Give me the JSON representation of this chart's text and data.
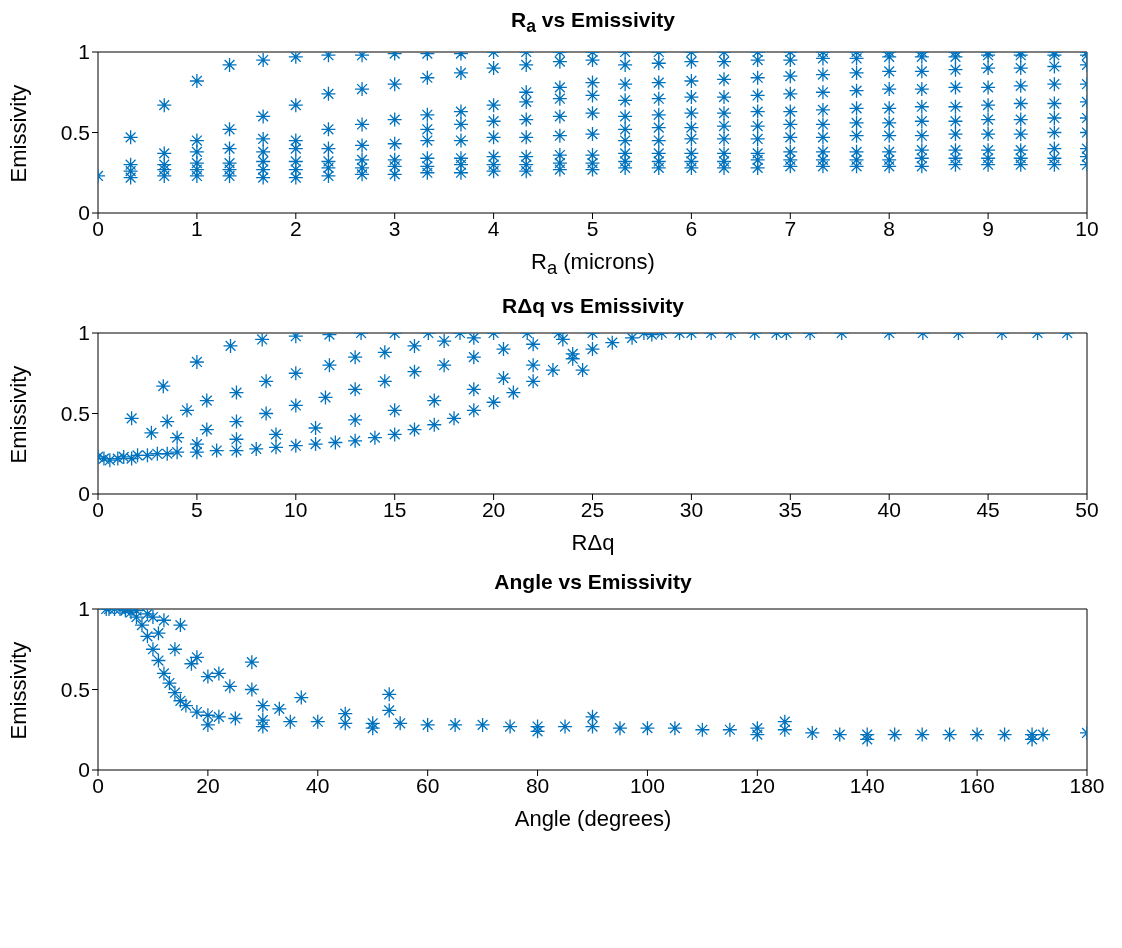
{
  "chart_data": [
    {
      "type": "scatter",
      "title": "R$_{a}$ vs Emissivity",
      "xlabel": "R$_{a}$ (microns)",
      "ylabel": "Emissivity",
      "marker": "cross",
      "xlim": [
        0,
        10
      ],
      "xticks": [
        0,
        1,
        2,
        3,
        4,
        5,
        6,
        7,
        8,
        9,
        10
      ],
      "ylim": [
        0,
        1
      ],
      "yticks": [
        0,
        0.5,
        1
      ],
      "series": [
        {
          "color": "#0072bd",
          "x": [
            0,
            0.33,
            0.33,
            0.33,
            0.33,
            0.67,
            0.67,
            0.67,
            0.67,
            0.67,
            1,
            1,
            1,
            1,
            1,
            1,
            1.33,
            1.33,
            1.33,
            1.33,
            1.33,
            1.33,
            1.67,
            1.67,
            1.67,
            1.67,
            1.67,
            1.67,
            1.67,
            2,
            2,
            2,
            2,
            2,
            2,
            2,
            2.33,
            2.33,
            2.33,
            2.33,
            2.33,
            2.33,
            2.33,
            2.67,
            2.67,
            2.67,
            2.67,
            2.67,
            2.67,
            2.67,
            3,
            3,
            3,
            3,
            3,
            3,
            3,
            3.33,
            3.33,
            3.33,
            3.33,
            3.33,
            3.33,
            3.33,
            3.33,
            3.67,
            3.67,
            3.67,
            3.67,
            3.67,
            3.67,
            3.67,
            3.67,
            4,
            4,
            4,
            4,
            4,
            4,
            4,
            4,
            4.33,
            4.33,
            4.33,
            4.33,
            4.33,
            4.33,
            4.33,
            4.33,
            4.33,
            4.67,
            4.67,
            4.67,
            4.67,
            4.67,
            4.67,
            4.67,
            4.67,
            4.67,
            5,
            5,
            5,
            5,
            5,
            5,
            5,
            5,
            5,
            5.33,
            5.33,
            5.33,
            5.33,
            5.33,
            5.33,
            5.33,
            5.33,
            5.33,
            5.33,
            5.67,
            5.67,
            5.67,
            5.67,
            5.67,
            5.67,
            5.67,
            5.67,
            5.67,
            5.67,
            6,
            6,
            6,
            6,
            6,
            6,
            6,
            6,
            6,
            6,
            6.33,
            6.33,
            6.33,
            6.33,
            6.33,
            6.33,
            6.33,
            6.33,
            6.33,
            6.33,
            6.67,
            6.67,
            6.67,
            6.67,
            6.67,
            6.67,
            6.67,
            6.67,
            6.67,
            6.67,
            7,
            7,
            7,
            7,
            7,
            7,
            7,
            7,
            7,
            7,
            7.33,
            7.33,
            7.33,
            7.33,
            7.33,
            7.33,
            7.33,
            7.33,
            7.33,
            7.33,
            7.67,
            7.67,
            7.67,
            7.67,
            7.67,
            7.67,
            7.67,
            7.67,
            7.67,
            7.67,
            8,
            8,
            8,
            8,
            8,
            8,
            8,
            8,
            8,
            8,
            8.33,
            8.33,
            8.33,
            8.33,
            8.33,
            8.33,
            8.33,
            8.33,
            8.33,
            8.33,
            8.67,
            8.67,
            8.67,
            8.67,
            8.67,
            8.67,
            8.67,
            8.67,
            8.67,
            8.67,
            9,
            9,
            9,
            9,
            9,
            9,
            9,
            9,
            9,
            9,
            9.33,
            9.33,
            9.33,
            9.33,
            9.33,
            9.33,
            9.33,
            9.33,
            9.33,
            9.33,
            9.67,
            9.67,
            9.67,
            9.67,
            9.67,
            9.67,
            9.67,
            9.67,
            9.67,
            9.67,
            10,
            10,
            10,
            10,
            10,
            10,
            10,
            10,
            10,
            10
          ],
          "values": [
            0.23,
            0.22,
            0.26,
            0.3,
            0.47,
            0.23,
            0.27,
            0.3,
            0.37,
            0.67,
            0.23,
            0.27,
            0.31,
            0.38,
            0.45,
            0.82,
            0.23,
            0.27,
            0.31,
            0.4,
            0.52,
            0.92,
            0.22,
            0.27,
            0.32,
            0.38,
            0.46,
            0.6,
            0.95,
            0.22,
            0.27,
            0.32,
            0.4,
            0.45,
            0.67,
            0.97,
            0.23,
            0.28,
            0.32,
            0.4,
            0.52,
            0.74,
            0.98,
            0.24,
            0.28,
            0.33,
            0.42,
            0.55,
            0.77,
            0.98,
            0.24,
            0.29,
            0.33,
            0.43,
            0.58,
            0.8,
            0.99,
            0.25,
            0.29,
            0.34,
            0.45,
            0.52,
            0.61,
            0.84,
            0.99,
            0.25,
            0.3,
            0.34,
            0.45,
            0.55,
            0.63,
            0.87,
            0.99,
            0.26,
            0.3,
            0.35,
            0.47,
            0.57,
            0.67,
            0.9,
            1,
            0.26,
            0.3,
            0.35,
            0.47,
            0.58,
            0.69,
            0.75,
            0.92,
            1,
            0.27,
            0.31,
            0.36,
            0.48,
            0.6,
            0.71,
            0.78,
            0.94,
            1,
            0.27,
            0.31,
            0.36,
            0.49,
            0.62,
            0.73,
            0.81,
            0.95,
            1,
            0.28,
            0.32,
            0.37,
            0.45,
            0.52,
            0.6,
            0.7,
            0.8,
            0.92,
            1,
            0.28,
            0.32,
            0.37,
            0.45,
            0.53,
            0.61,
            0.71,
            0.81,
            0.93,
            1,
            0.28,
            0.32,
            0.37,
            0.46,
            0.53,
            0.62,
            0.72,
            0.82,
            0.94,
            1,
            0.28,
            0.32,
            0.37,
            0.46,
            0.54,
            0.62,
            0.72,
            0.83,
            0.94,
            1,
            0.28,
            0.33,
            0.37,
            0.46,
            0.54,
            0.63,
            0.73,
            0.84,
            0.95,
            1,
            0.29,
            0.33,
            0.38,
            0.47,
            0.55,
            0.63,
            0.74,
            0.85,
            0.95,
            1,
            0.29,
            0.33,
            0.38,
            0.47,
            0.55,
            0.64,
            0.75,
            0.86,
            0.96,
            1,
            0.29,
            0.33,
            0.38,
            0.48,
            0.56,
            0.65,
            0.76,
            0.87,
            0.96,
            1,
            0.29,
            0.33,
            0.38,
            0.48,
            0.56,
            0.65,
            0.77,
            0.88,
            0.97,
            1,
            0.29,
            0.34,
            0.39,
            0.48,
            0.57,
            0.66,
            0.77,
            0.88,
            0.97,
            1,
            0.3,
            0.34,
            0.39,
            0.49,
            0.57,
            0.66,
            0.78,
            0.89,
            0.97,
            1,
            0.3,
            0.34,
            0.39,
            0.49,
            0.58,
            0.67,
            0.78,
            0.9,
            0.98,
            1,
            0.3,
            0.34,
            0.39,
            0.49,
            0.58,
            0.68,
            0.79,
            0.9,
            0.98,
            1,
            0.3,
            0.34,
            0.4,
            0.5,
            0.59,
            0.68,
            0.8,
            0.91,
            0.98,
            1,
            0.3,
            0.35,
            0.4,
            0.5,
            0.59,
            0.69,
            0.8,
            0.92,
            0.98,
            1
          ]
        }
      ]
    },
    {
      "type": "scatter",
      "title": "RΔq vs Emissivity",
      "xlabel": "RΔq",
      "ylabel": "Emissivity",
      "marker": "cross",
      "xlim": [
        0,
        50
      ],
      "xticks": [
        0,
        5,
        10,
        15,
        20,
        25,
        30,
        35,
        40,
        45,
        50
      ],
      "ylim": [
        0,
        1
      ],
      "yticks": [
        0,
        0.5,
        1
      ],
      "series": [
        {
          "color": "#0072bd",
          "x": [
            0,
            0.3,
            0.6,
            1,
            1.3,
            1.7,
            2,
            2.5,
            3,
            3.5,
            4,
            5,
            6,
            7,
            8,
            9,
            10,
            11,
            12,
            13,
            14,
            15,
            16,
            17,
            18,
            19,
            20,
            21,
            22,
            23,
            24,
            25,
            26,
            27,
            28,
            1.7,
            3.3,
            5,
            6.7,
            8.3,
            10,
            11.7,
            13.3,
            15,
            16.7,
            18.3,
            20,
            21.7,
            23.3,
            25,
            27.6,
            28.5,
            29.4,
            30,
            31,
            32,
            33.2,
            34.3,
            34.8,
            36,
            37.6,
            40,
            41.7,
            43.5,
            45.7,
            47.5,
            49,
            2.7,
            3.5,
            4.5,
            5.5,
            7,
            8.5,
            10,
            11.7,
            13,
            14.5,
            16,
            17.5,
            19,
            4,
            5.5,
            7,
            8.5,
            10,
            11.5,
            13,
            14.5,
            16,
            17.5,
            19,
            20.5,
            22,
            23.5,
            5,
            7,
            9,
            11,
            13,
            15,
            17,
            19,
            20.5,
            22,
            24,
            24.5
          ],
          "values": [
            0.23,
            0.22,
            0.21,
            0.22,
            0.23,
            0.22,
            0.24,
            0.24,
            0.25,
            0.25,
            0.26,
            0.26,
            0.27,
            0.27,
            0.28,
            0.29,
            0.3,
            0.31,
            0.32,
            0.33,
            0.35,
            0.37,
            0.4,
            0.43,
            0.47,
            0.52,
            0.57,
            0.63,
            0.7,
            0.77,
            0.84,
            0.9,
            0.94,
            0.97,
            0.99,
            0.47,
            0.67,
            0.82,
            0.92,
            0.96,
            0.98,
            0.99,
            1,
            1,
            1,
            1,
            1,
            1,
            1,
            1,
            1,
            1,
            1,
            1,
            1,
            1,
            1,
            1,
            1,
            1,
            1,
            1,
            1,
            1,
            1,
            1,
            1,
            0.38,
            0.45,
            0.52,
            0.58,
            0.63,
            0.7,
            0.75,
            0.8,
            0.85,
            0.88,
            0.92,
            0.95,
            0.97,
            0.35,
            0.4,
            0.45,
            0.5,
            0.55,
            0.6,
            0.65,
            0.7,
            0.76,
            0.8,
            0.85,
            0.9,
            0.93,
            0.96,
            0.31,
            0.34,
            0.37,
            0.41,
            0.46,
            0.52,
            0.58,
            0.65,
            0.72,
            0.8,
            0.87,
            0.77
          ]
        }
      ]
    },
    {
      "type": "scatter",
      "title": "Angle vs Emissivity",
      "xlabel": "Angle (degrees)",
      "ylabel": "Emissivity",
      "marker": "cross",
      "xlim": [
        0,
        180
      ],
      "xticks": [
        0,
        20,
        40,
        60,
        80,
        100,
        120,
        140,
        160,
        180
      ],
      "ylim": [
        0,
        1
      ],
      "yticks": [
        0,
        0.5,
        1
      ],
      "series": [
        {
          "color": "#0072bd",
          "x": [
            1.5,
            2,
            3,
            4,
            5,
            6,
            7,
            8,
            9,
            10,
            11,
            12,
            13,
            14,
            15,
            16,
            18,
            20,
            22,
            25,
            30,
            35,
            40,
            45,
            50,
            55,
            60,
            65,
            70,
            75,
            80,
            85,
            90,
            95,
            100,
            105,
            110,
            115,
            120,
            125,
            130,
            135,
            140,
            145,
            150,
            155,
            160,
            165,
            170,
            172,
            180,
            5,
            7,
            9,
            10,
            12,
            15,
            11,
            14,
            17,
            20,
            22,
            24,
            28,
            28,
            18,
            30,
            33,
            37,
            45,
            53,
            53,
            90,
            125,
            20,
            30,
            50,
            80,
            120,
            140,
            170
          ],
          "values": [
            1,
            1,
            1,
            1,
            0.99,
            0.98,
            0.95,
            0.9,
            0.83,
            0.75,
            0.68,
            0.6,
            0.54,
            0.48,
            0.43,
            0.4,
            0.36,
            0.34,
            0.33,
            0.32,
            0.31,
            0.3,
            0.3,
            0.29,
            0.29,
            0.29,
            0.28,
            0.28,
            0.28,
            0.27,
            0.27,
            0.27,
            0.27,
            0.26,
            0.26,
            0.26,
            0.25,
            0.25,
            0.26,
            0.25,
            0.23,
            0.22,
            0.22,
            0.22,
            0.22,
            0.22,
            0.22,
            0.22,
            0.22,
            0.22,
            0.23,
            1,
            0.99,
            0.97,
            0.95,
            0.93,
            0.9,
            0.85,
            0.75,
            0.66,
            0.58,
            0.6,
            0.52,
            0.67,
            0.5,
            0.7,
            0.4,
            0.38,
            0.45,
            0.35,
            0.47,
            0.37,
            0.33,
            0.3,
            0.28,
            0.27,
            0.26,
            0.24,
            0.22,
            0.19,
            0.19
          ]
        }
      ]
    }
  ]
}
